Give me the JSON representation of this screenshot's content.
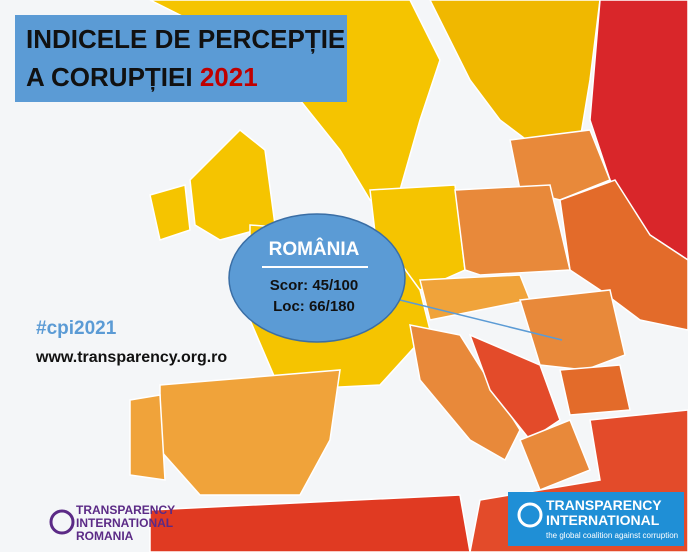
{
  "title": {
    "line1": "INDICELE DE PERCEPȚIE",
    "line2": "A CORUPȚIEI",
    "year": "2021"
  },
  "callout": {
    "country": "ROMÂNIA",
    "score_label": "Scor:",
    "score": "45/100",
    "rank_label": "Loc:",
    "rank": "66/180"
  },
  "hashtag": "#cpi2021",
  "website": "www.transparency.org.ro",
  "logo_left": {
    "line1": "TRANSPARENCY",
    "line2": "INTERNATIONAL",
    "line3": "ROMANIA"
  },
  "logo_right": {
    "line1": "TRANSPARENCY",
    "line2": "INTERNATIONAL",
    "tagline": "the global coalition against corruption"
  }
}
